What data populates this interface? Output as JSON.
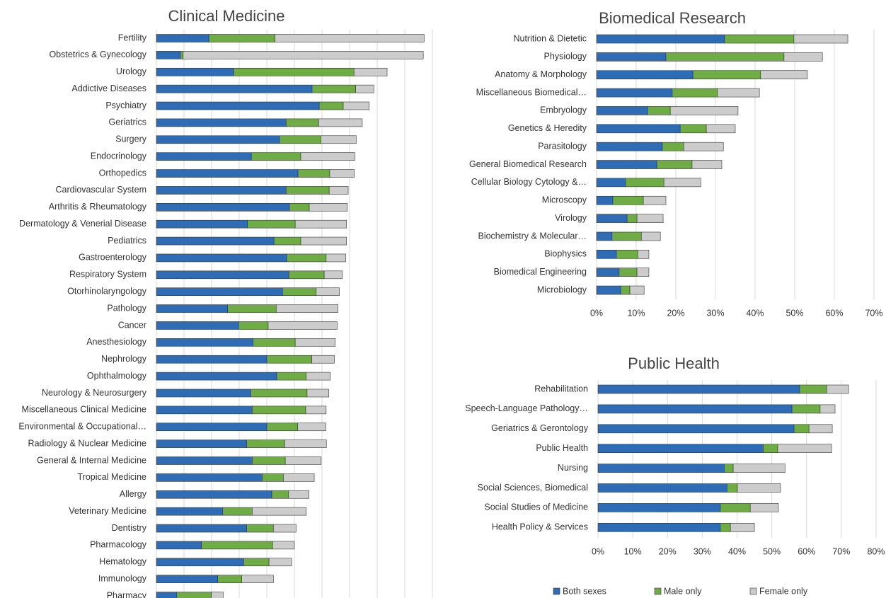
{
  "legend": [
    {
      "name": "Both sexes",
      "color": "#2e6db5"
    },
    {
      "name": "Male only",
      "color": "#6fac46"
    },
    {
      "name": "Female only",
      "color": "#cccccc"
    }
  ],
  "chart_data": [
    {
      "type": "bar",
      "orientation": "horizontal",
      "stacked": true,
      "grid": true,
      "title": "Clinical Medicine",
      "categories": [
        "Fertility",
        "Obstetrics & Gynecology",
        "Urology",
        "Addictive Diseases",
        "Psychiatry",
        "Geriatrics",
        "Surgery",
        "Endocrinology",
        "Orthopedics",
        "Cardiovascular System",
        "Arthritis & Rheumatology",
        "Dermatology & Venerial Disease",
        "Pediatrics",
        "Gastroenterology",
        "Respiratory System",
        "Otorhinolaryngology",
        "Pathology",
        "Cancer",
        "Anesthesiology",
        "Nephrology",
        "Ophthalmology",
        "Neurology & Neurosurgery",
        "Miscellaneous Clinical Medicine",
        "Environmental & Occupational…",
        "Radiology & Nuclear Medicine",
        "General & Internal Medicine",
        "Tropical Medicine",
        "Allergy",
        "Veterinary Medicine",
        "Dentistry",
        "Pharmacology",
        "Hematology",
        "Immunology",
        "Pharmacy"
      ],
      "series": [
        {
          "values": [
            19,
            8.7,
            28,
            56.4,
            59,
            47,
            44.6,
            34.4,
            51.3,
            47,
            48.2,
            33,
            42.6,
            47.2,
            48,
            45.7,
            25.8,
            29.8,
            35,
            40,
            43.6,
            34.2,
            34.7,
            40,
            32.7,
            34.7,
            38.3,
            41.8,
            24,
            32.7,
            16.3,
            31.6,
            22.2,
            7.4
          ]
        },
        {
          "values": [
            24,
            1,
            43.6,
            15.8,
            8.7,
            11.8,
            15,
            17.9,
            11.5,
            15.6,
            7.2,
            17.3,
            9.7,
            14.3,
            12.8,
            12.2,
            17.6,
            10.7,
            15.3,
            16.3,
            10.7,
            20.4,
            19.4,
            11.2,
            13.8,
            12,
            7.7,
            6.1,
            10.7,
            9.7,
            25.8,
            9.2,
            8.7,
            12.5
          ]
        },
        {
          "values": [
            54,
            87,
            12,
            6.6,
            9.4,
            15.8,
            12.8,
            19.6,
            8.9,
            6.9,
            13.8,
            18.6,
            16.6,
            7.1,
            6.6,
            8.4,
            22.4,
            25,
            14.5,
            8.2,
            8.7,
            7.9,
            7.4,
            10.2,
            15.1,
            13,
            11.2,
            7.4,
            19.6,
            8.2,
            7.9,
            8.2,
            11.5,
            4.3
          ]
        }
      ],
      "xlim": [
        0,
        100
      ],
      "xticks": [
        0,
        10,
        20,
        30,
        40,
        50,
        60,
        70,
        80,
        90,
        100
      ]
    },
    {
      "type": "bar",
      "orientation": "horizontal",
      "stacked": true,
      "grid": true,
      "title": "Biomedical Research",
      "categories": [
        "Nutrition & Dietetic",
        "Physiology",
        "Anatomy & Morphology",
        "Miscellaneous Biomedical…",
        "Embryology",
        "Genetics & Heredity",
        "Parasitology",
        "General Biomedical Research",
        "Cellular Biology Cytology &…",
        "Microscopy",
        "Virology",
        "Biochemistry & Molecular…",
        "Biophysics",
        "Biomedical Engineering",
        "Microbiology"
      ],
      "series": [
        {
          "values": [
            32.3,
            17.5,
            24.3,
            19.1,
            12.9,
            21.1,
            16.6,
            15.2,
            7.3,
            4.1,
            7.7,
            3.9,
            5,
            5.7,
            6.1
          ]
        },
        {
          "values": [
            17.5,
            29.8,
            17.1,
            11.4,
            5.7,
            6.6,
            5.4,
            8.9,
            9.7,
            7.7,
            2.5,
            7.4,
            5.4,
            4.5,
            2.3
          ]
        },
        {
          "values": [
            13.6,
            9.7,
            11.8,
            10.6,
            17.1,
            7.3,
            10,
            7.5,
            9.3,
            5.7,
            6.6,
            4.8,
            2.8,
            3,
            3.6
          ]
        }
      ],
      "xlim": [
        0,
        70
      ],
      "xticks": [
        {
          "value": 0,
          "label": "0%"
        },
        {
          "value": 10,
          "label": "10%"
        },
        {
          "value": 20,
          "label": "20%"
        },
        {
          "value": 30,
          "label": "30%"
        },
        {
          "value": 40,
          "label": "40%"
        },
        {
          "value": 50,
          "label": "50%"
        },
        {
          "value": 60,
          "label": "60%"
        },
        {
          "value": 70,
          "label": "70%"
        }
      ]
    },
    {
      "type": "bar",
      "orientation": "horizontal",
      "stacked": true,
      "grid": true,
      "title": "Public Health",
      "categories": [
        "Rehabilitation",
        "Speech-Language Pathology…",
        "Geriatrics & Gerontology",
        "Public Health",
        "Nursing",
        "Social Sciences, Biomedical",
        "Social Studies of Medicine",
        "Health Policy & Services"
      ],
      "series": [
        {
          "values": [
            58,
            55.8,
            56.4,
            47.5,
            36.3,
            37.1,
            35.2,
            35.2
          ]
        },
        {
          "values": [
            7.8,
            8.1,
            4.3,
            4.2,
            2.6,
            3,
            8.6,
            2.9
          ]
        },
        {
          "values": [
            6.3,
            4.3,
            6.7,
            15.5,
            14.9,
            12.4,
            8.1,
            6.9
          ]
        }
      ],
      "xlim": [
        0,
        80
      ],
      "xticks": [
        {
          "value": 0,
          "label": "0%"
        },
        {
          "value": 10,
          "label": "10%"
        },
        {
          "value": 20,
          "label": "20%"
        },
        {
          "value": 30,
          "label": "30%"
        },
        {
          "value": 40,
          "label": "40%"
        },
        {
          "value": 50,
          "label": "50%"
        },
        {
          "value": 60,
          "label": "60%"
        },
        {
          "value": 70,
          "label": "70%"
        },
        {
          "value": 80,
          "label": "80%"
        }
      ]
    }
  ]
}
